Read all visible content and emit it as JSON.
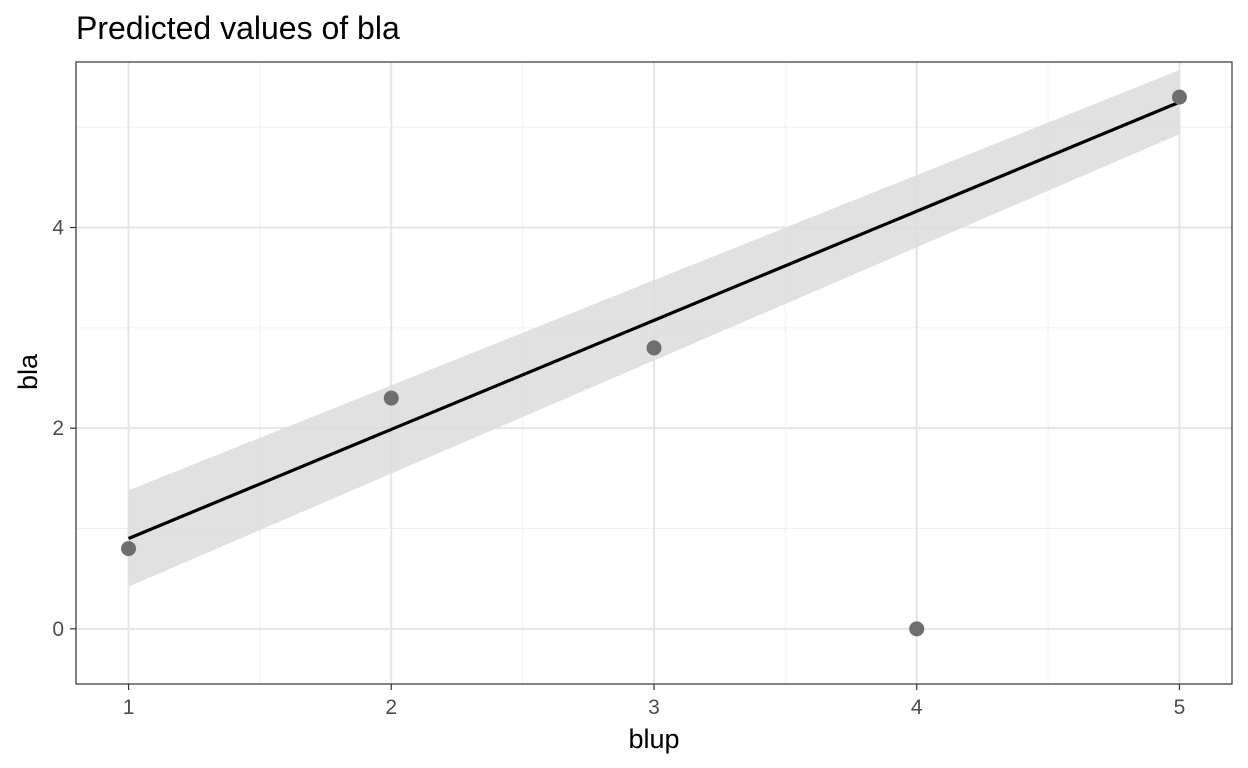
{
  "chart_data": {
    "type": "scatter",
    "title": "Predicted values of bla",
    "xlabel": "blup",
    "ylabel": "bla",
    "xlim": [
      0.8,
      5.2
    ],
    "ylim": [
      -0.55,
      5.65
    ],
    "x_ticks": [
      1,
      2,
      3,
      4,
      5
    ],
    "y_ticks": [
      0,
      2,
      4
    ],
    "grid": true,
    "points": [
      {
        "x": 1,
        "y": 0.8
      },
      {
        "x": 2,
        "y": 2.3
      },
      {
        "x": 3,
        "y": 2.8
      },
      {
        "x": 4,
        "y": 0.0
      },
      {
        "x": 5,
        "y": 5.3
      }
    ],
    "fit_line": {
      "x": [
        1,
        5
      ],
      "y": [
        0.9,
        5.25
      ]
    },
    "confidence_band": {
      "x": [
        1,
        5
      ],
      "lower": [
        0.42,
        4.93
      ],
      "upper": [
        1.38,
        5.57
      ]
    },
    "colors": {
      "point": "#6e6e6e",
      "line": "#000000",
      "band": "#dcdcdc",
      "grid_major": "#e5e5e5",
      "grid_minor": "#f0f0f0",
      "panel_border": "#333333",
      "tick_label": "#4d4d4d"
    }
  }
}
